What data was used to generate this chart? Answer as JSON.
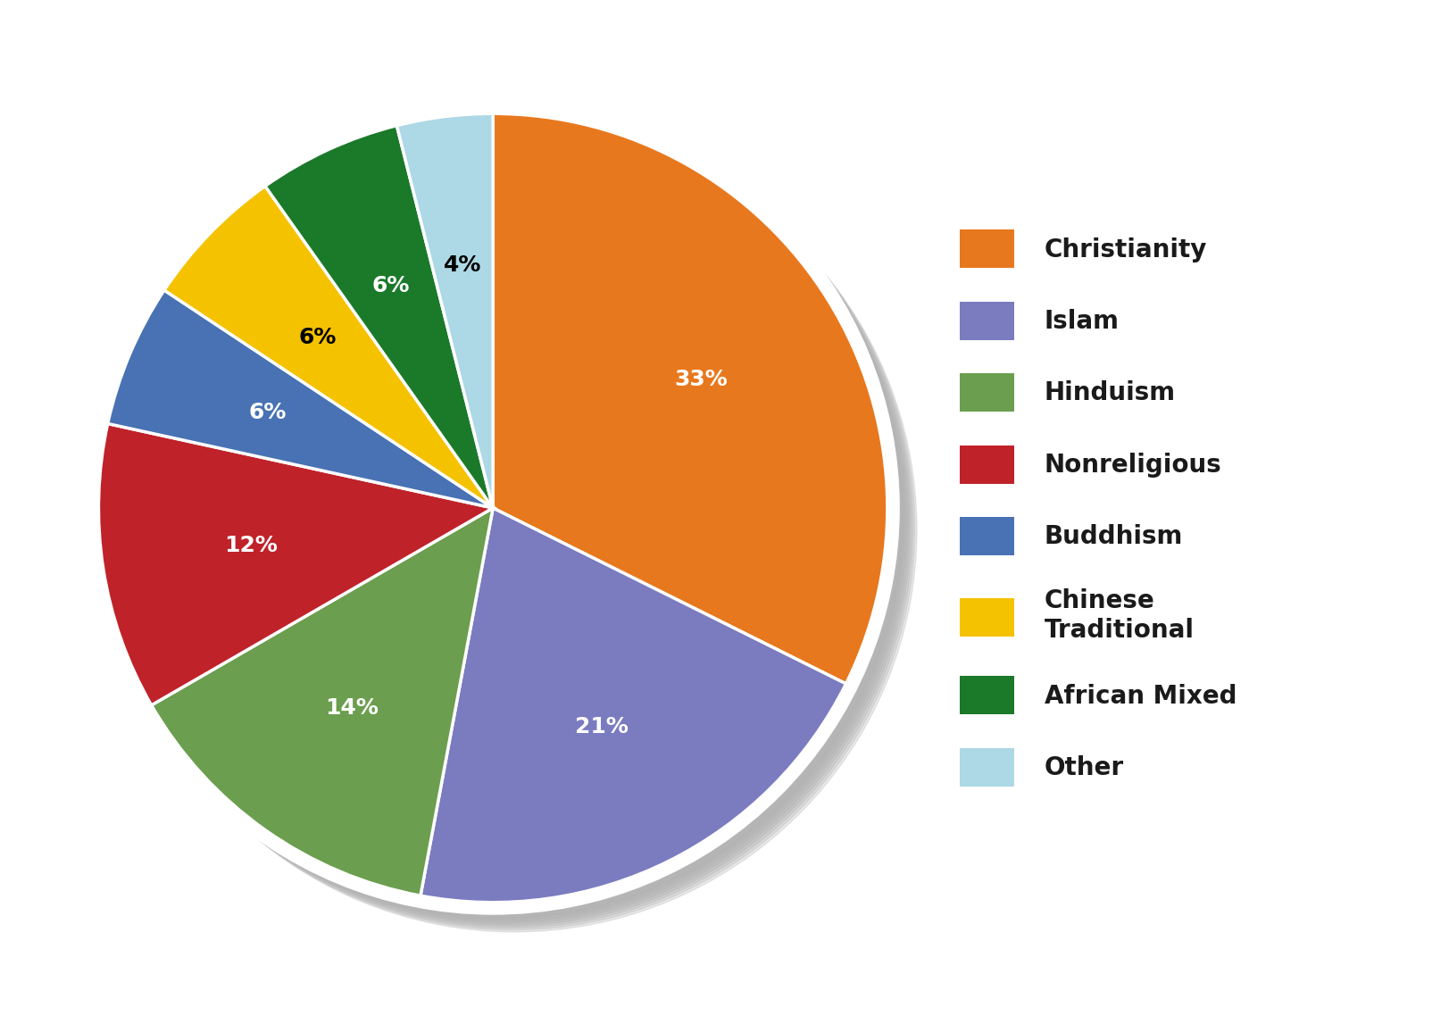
{
  "labels": [
    "Christianity",
    "Islam",
    "Hinduism",
    "Nonreligious",
    "Buddhism",
    "Chinese Traditional",
    "African Mixed",
    "Other"
  ],
  "values": [
    33,
    21,
    14,
    12,
    6,
    6,
    6,
    4
  ],
  "colors": [
    "#E8781E",
    "#7B7BC0",
    "#6B9E4E",
    "#C0222A",
    "#4872B4",
    "#F5C200",
    "#1B7A2A",
    "#ADD8E6"
  ],
  "label_colors": [
    "white",
    "white",
    "white",
    "white",
    "white",
    "black",
    "white",
    "black"
  ],
  "legend_labels": [
    "Christianity",
    "Islam",
    "Hinduism",
    "Nonreligious",
    "Buddhism",
    "Chinese\nTraditional",
    "African Mixed",
    "Other"
  ],
  "background_color": "#ffffff",
  "startangle": 90,
  "pie_edge_color": "white",
  "pie_linewidth": 2.5,
  "label_fontsize": 18,
  "legend_fontsize": 20
}
